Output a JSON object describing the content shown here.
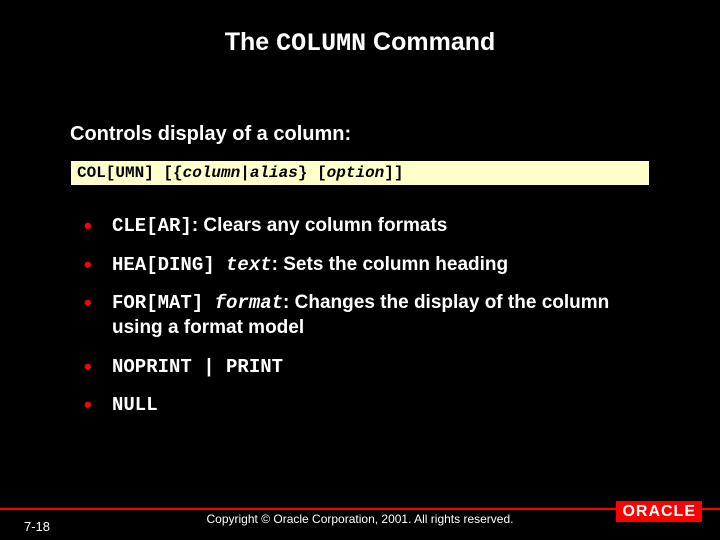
{
  "title": {
    "pre": "The ",
    "code": "COLUMN",
    "post": " Command"
  },
  "subtitle": "Controls display of a column:",
  "syntax": {
    "part1": "COL[UMN] [{",
    "ital1": "column",
    "mid1": "|",
    "ital2": "alias",
    "mid2": "} [",
    "ital3": "option",
    "end": "]]"
  },
  "bullets": [
    {
      "code": "CLE[AR]",
      "text": ": Clears any column formats"
    },
    {
      "code": "HEA[DING] ",
      "ital": "text",
      "text": ": Sets the column heading"
    },
    {
      "code": "FOR[MAT] ",
      "ital": "format",
      "text": ": Changes the display of the column using a format model"
    },
    {
      "code": "NOPRINT | PRINT",
      "text": ""
    },
    {
      "code": "NULL",
      "text": ""
    }
  ],
  "page": "7-18",
  "copyright": "Copyright © Oracle Corporation, 2001. All rights reserved.",
  "logo": "ORACLE"
}
